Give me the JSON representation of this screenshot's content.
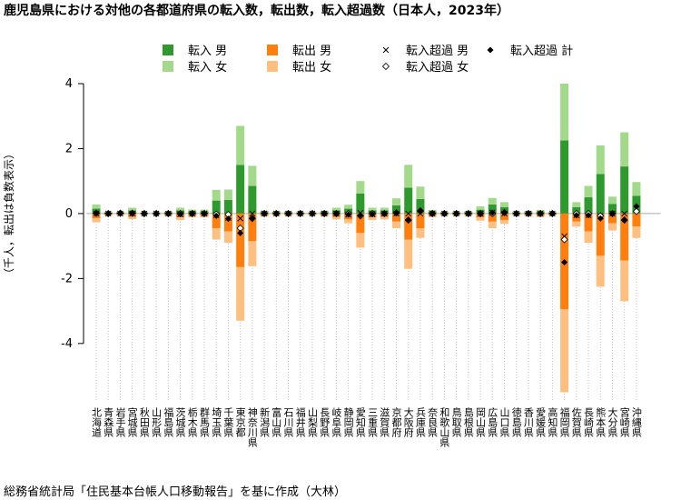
{
  "chart_data": {
    "type": "stacked-bar",
    "title": "鹿児島県における対他の各都道府県の転入数，転出数，転入超過数（日本人，2023年）",
    "ylabel": "（千人，転出は負数表示）",
    "caption": "総務省統計局「住民基本台帳人口移動報告」を基に作成（大林）",
    "categories": [
      "北海道",
      "青森県",
      "岩手県",
      "宮城県",
      "秋田県",
      "山形県",
      "福島県",
      "茨城県",
      "栃木県",
      "群馬県",
      "埼玉県",
      "千葉県",
      "東京都",
      "神奈川県",
      "新潟県",
      "富山県",
      "石川県",
      "福井県",
      "山梨県",
      "長野県",
      "岐阜県",
      "静岡県",
      "愛知県",
      "三重県",
      "滋賀県",
      "京都府",
      "大阪府",
      "兵庫県",
      "奈良県",
      "和歌山県",
      "鳥取県",
      "島根県",
      "岡山県",
      "広島県",
      "山口県",
      "徳島県",
      "香川県",
      "愛媛県",
      "高知県",
      "福岡県",
      "佐賀県",
      "長崎県",
      "熊本県",
      "大分県",
      "宮崎県",
      "沖縄県"
    ],
    "ylim": [
      -5.6,
      4
    ],
    "yticks": [
      -4,
      -2,
      0,
      2,
      4
    ],
    "series": [
      {
        "name": "転入 男",
        "kind": "bar",
        "color": "#2e9a2e",
        "values": [
          0.15,
          0.03,
          0.03,
          0.1,
          0.02,
          0.02,
          0.04,
          0.1,
          0.07,
          0.07,
          0.4,
          0.42,
          1.5,
          0.85,
          0.05,
          0.04,
          0.04,
          0.03,
          0.03,
          0.05,
          0.1,
          0.15,
          0.62,
          0.1,
          0.1,
          0.25,
          0.8,
          0.45,
          0.06,
          0.03,
          0.03,
          0.04,
          0.12,
          0.28,
          0.2,
          0.03,
          0.04,
          0.06,
          0.03,
          2.25,
          0.2,
          0.5,
          1.22,
          0.3,
          1.45,
          0.55
        ]
      },
      {
        "name": "転入 女",
        "kind": "bar",
        "color": "#a3d98b",
        "values": [
          0.13,
          0.03,
          0.03,
          0.08,
          0.02,
          0.02,
          0.03,
          0.08,
          0.05,
          0.05,
          0.33,
          0.32,
          1.2,
          0.62,
          0.04,
          0.03,
          0.03,
          0.02,
          0.02,
          0.04,
          0.08,
          0.12,
          0.38,
          0.08,
          0.08,
          0.22,
          0.7,
          0.38,
          0.05,
          0.03,
          0.03,
          0.03,
          0.1,
          0.2,
          0.15,
          0.03,
          0.04,
          0.05,
          0.03,
          1.75,
          0.15,
          0.35,
          0.88,
          0.22,
          1.05,
          0.42
        ]
      },
      {
        "name": "転出 男",
        "kind": "bar",
        "color": "#ff7f0e",
        "values": [
          -0.15,
          -0.03,
          -0.03,
          -0.1,
          -0.02,
          -0.02,
          -0.04,
          -0.12,
          -0.07,
          -0.07,
          -0.45,
          -0.55,
          -1.65,
          -0.85,
          -0.05,
          -0.04,
          -0.04,
          -0.03,
          -0.03,
          -0.05,
          -0.1,
          -0.18,
          -0.6,
          -0.12,
          -0.1,
          -0.25,
          -0.8,
          -0.45,
          -0.06,
          -0.03,
          -0.03,
          -0.04,
          -0.12,
          -0.25,
          -0.2,
          -0.03,
          -0.04,
          -0.06,
          -0.03,
          -2.95,
          -0.25,
          -0.55,
          -1.3,
          -0.3,
          -1.45,
          -0.4
        ]
      },
      {
        "name": "転出 女",
        "kind": "bar",
        "color": "#ffbf80",
        "values": [
          -0.12,
          -0.03,
          -0.02,
          -0.07,
          -0.02,
          -0.02,
          -0.03,
          -0.08,
          -0.05,
          -0.05,
          -0.35,
          -0.35,
          -1.65,
          -0.77,
          -0.04,
          -0.03,
          -0.03,
          -0.02,
          -0.02,
          -0.04,
          -0.08,
          -0.12,
          -0.45,
          -0.08,
          -0.08,
          -0.2,
          -0.9,
          -0.3,
          -0.05,
          -0.03,
          -0.03,
          -0.03,
          -0.1,
          -0.2,
          -0.12,
          -0.03,
          -0.04,
          -0.05,
          -0.03,
          -2.55,
          -0.15,
          -0.35,
          -0.95,
          -0.22,
          -1.25,
          -0.35
        ]
      },
      {
        "name": "転入超過 男",
        "kind": "point",
        "marker": "x",
        "color": "#000000",
        "values": [
          0,
          0,
          0,
          0,
          0,
          0,
          0,
          -0.02,
          0,
          0,
          -0.05,
          -0.13,
          -0.15,
          0,
          0,
          0,
          0,
          0,
          0,
          0,
          0,
          -0.03,
          0.02,
          -0.02,
          0,
          0,
          0,
          0,
          0,
          0,
          0,
          0,
          0,
          0.03,
          0,
          0,
          0,
          0,
          0,
          -0.7,
          -0.05,
          -0.05,
          -0.08,
          0,
          0,
          0.15
        ]
      },
      {
        "name": "転入超過 女",
        "kind": "point",
        "marker": "diamond-open",
        "color": "#000000",
        "values": [
          0.01,
          0,
          0.01,
          0.01,
          0,
          0,
          0,
          0,
          0,
          0,
          -0.02,
          -0.03,
          -0.45,
          -0.15,
          0,
          0,
          0,
          0,
          0,
          0,
          0,
          0,
          -0.07,
          0,
          0,
          0.02,
          -0.2,
          0.08,
          0,
          0,
          0,
          0,
          0,
          0,
          0.03,
          0,
          0,
          0,
          0,
          -0.8,
          0,
          0,
          -0.07,
          0,
          -0.2,
          0.07
        ]
      },
      {
        "name": "転入超過 計",
        "kind": "point",
        "marker": "diamond",
        "color": "#000000",
        "values": [
          0.01,
          0,
          0.01,
          0.01,
          0,
          0,
          0,
          -0.02,
          0,
          0,
          -0.07,
          -0.16,
          -0.6,
          -0.15,
          0,
          0,
          0,
          0,
          0,
          0,
          0,
          -0.03,
          -0.05,
          -0.02,
          0,
          0.02,
          -0.2,
          0.08,
          0,
          0,
          0,
          0,
          0,
          0.03,
          0.03,
          0,
          0,
          0,
          0,
          -1.5,
          -0.05,
          -0.05,
          -0.15,
          0,
          -0.2,
          0.22
        ]
      }
    ]
  }
}
